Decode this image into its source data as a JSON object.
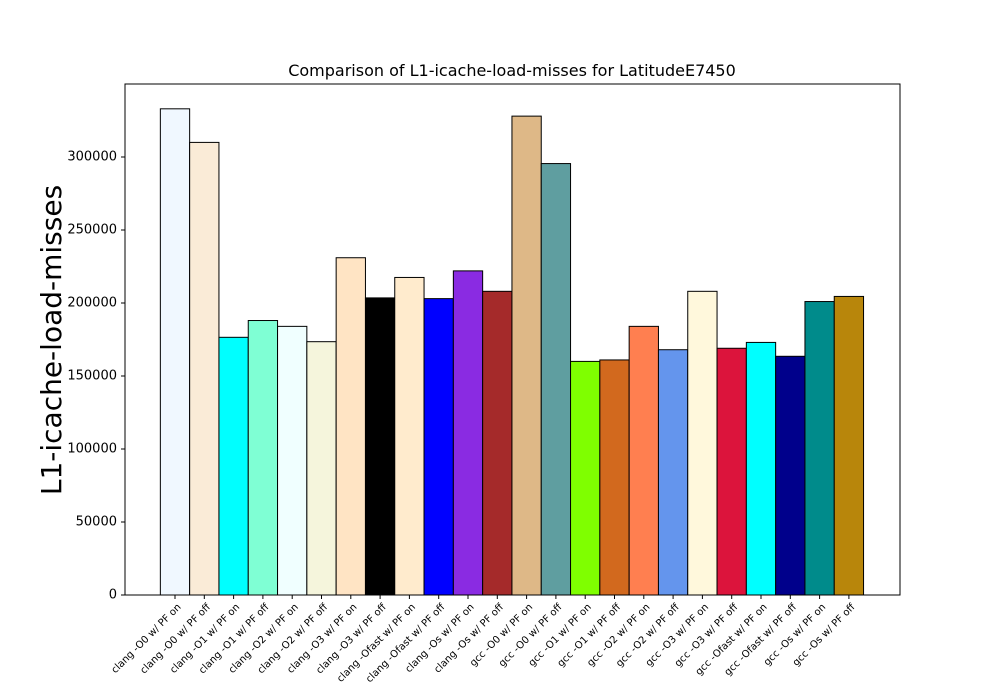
{
  "chart_data": {
    "type": "bar",
    "title": "Comparison of L1-icache-load-misses for LatitudeE7450",
    "xlabel": "",
    "ylabel": "L1-icache-load-misses",
    "ylim": [
      0,
      350000
    ],
    "yticks": [
      0,
      50000,
      100000,
      150000,
      200000,
      250000,
      300000
    ],
    "grid": false,
    "categories": [
      "clang -O0 w/ PF on",
      "clang -O0 w/ PF off",
      "clang -O1 w/ PF on",
      "clang -O1 w/ PF off",
      "clang -O2 w/ PF on",
      "clang -O2 w/ PF off",
      "clang -O3 w/ PF on",
      "clang -O3 w/ PF off",
      "clang -Ofast w/ PF on",
      "clang -Ofast w/ PF off",
      "clang -Os w/ PF on",
      "clang -Os w/ PF off",
      "gcc -O0 w/ PF on",
      "gcc -O0 w/ PF off",
      "gcc -O1 w/ PF on",
      "gcc -O1 w/ PF off",
      "gcc -O2 w/ PF on",
      "gcc -O2 w/ PF off",
      "gcc -O3 w/ PF on",
      "gcc -O3 w/ PF off",
      "gcc -Ofast w/ PF on",
      "gcc -Ofast w/ PF off",
      "gcc -Os w/ PF on",
      "gcc -Os w/ PF off"
    ],
    "values": [
      333000,
      310000,
      176500,
      188000,
      184000,
      173500,
      231000,
      203500,
      217500,
      203000,
      222000,
      208000,
      328000,
      295500,
      160000,
      161000,
      184000,
      168000,
      208000,
      169000,
      173000,
      163500,
      201000,
      204500
    ],
    "colors": [
      "#f0f8ff",
      "#faebd7",
      "#00ffff",
      "#7fffd4",
      "#f0ffff",
      "#f5f5dc",
      "#ffe4c4",
      "#000000",
      "#ffebcd",
      "#0000ff",
      "#8a2be2",
      "#a52a2a",
      "#deb887",
      "#5f9ea0",
      "#7fff00",
      "#d2691e",
      "#ff7f50",
      "#6495ed",
      "#fff8dc",
      "#dc143c",
      "#00ffff",
      "#00008b",
      "#008b8b",
      "#b8860b"
    ]
  }
}
